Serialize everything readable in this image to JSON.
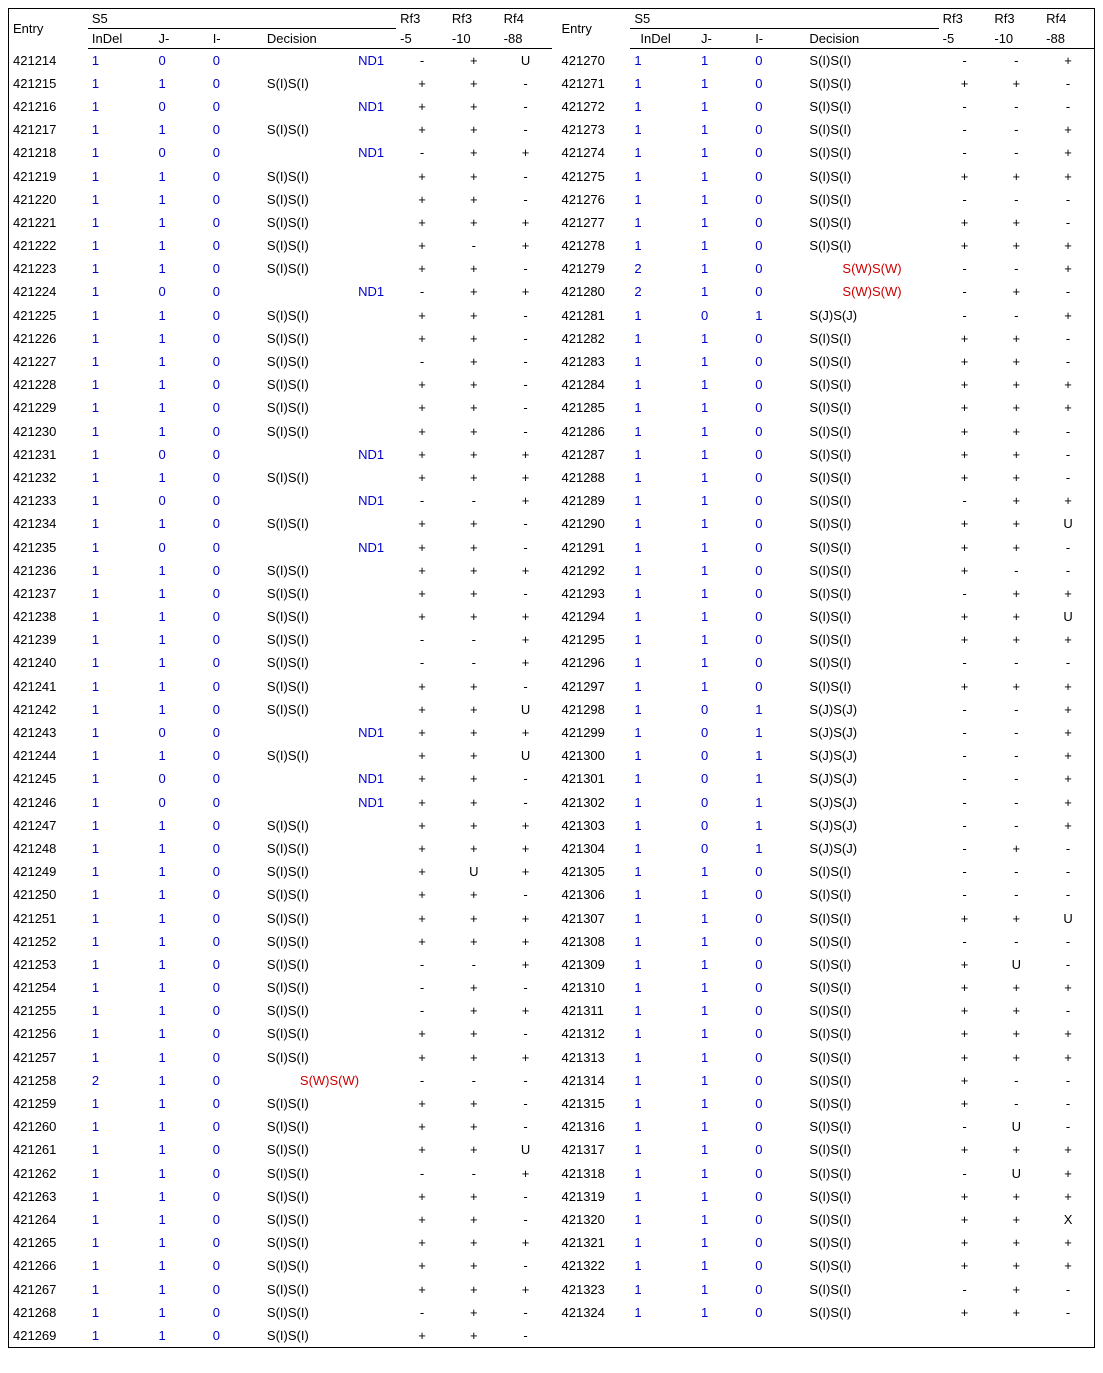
{
  "headers": {
    "entry": "Entry",
    "s5": "S5",
    "indel": "InDel",
    "j": "J-",
    "i": "I-",
    "decision": "Decision",
    "rf3_5_a": "Rf3",
    "rf3_5_b": "-5",
    "rf3_10_a": "Rf3",
    "rf3_10_b": "-10",
    "rf4_88_a": "Rf4",
    "rf4_88_b": "-88"
  },
  "decisionStyles": {
    "ND1": "dec-blue",
    "S(I)S(I)": "dec-black",
    "S(W)S(W)": "dec-red",
    "S(J)S(J)": "dec-black"
  },
  "left": [
    [
      "421214",
      "1",
      "0",
      "0",
      "ND1",
      "-",
      "+",
      "U"
    ],
    [
      "421215",
      "1",
      "1",
      "0",
      "S(I)S(I)",
      "+",
      "+",
      "-"
    ],
    [
      "421216",
      "1",
      "0",
      "0",
      "ND1",
      "+",
      "+",
      "-"
    ],
    [
      "421217",
      "1",
      "1",
      "0",
      "S(I)S(I)",
      "+",
      "+",
      "-"
    ],
    [
      "421218",
      "1",
      "0",
      "0",
      "ND1",
      "-",
      "+",
      "+"
    ],
    [
      "421219",
      "1",
      "1",
      "0",
      "S(I)S(I)",
      "+",
      "+",
      "-"
    ],
    [
      "421220",
      "1",
      "1",
      "0",
      "S(I)S(I)",
      "+",
      "+",
      "-"
    ],
    [
      "421221",
      "1",
      "1",
      "0",
      "S(I)S(I)",
      "+",
      "+",
      "+"
    ],
    [
      "421222",
      "1",
      "1",
      "0",
      "S(I)S(I)",
      "+",
      "-",
      "+"
    ],
    [
      "421223",
      "1",
      "1",
      "0",
      "S(I)S(I)",
      "+",
      "+",
      "-"
    ],
    [
      "421224",
      "1",
      "0",
      "0",
      "ND1",
      "-",
      "+",
      "+"
    ],
    [
      "421225",
      "1",
      "1",
      "0",
      "S(I)S(I)",
      "+",
      "+",
      "-"
    ],
    [
      "421226",
      "1",
      "1",
      "0",
      "S(I)S(I)",
      "+",
      "+",
      "-"
    ],
    [
      "421227",
      "1",
      "1",
      "0",
      "S(I)S(I)",
      "-",
      "+",
      "-"
    ],
    [
      "421228",
      "1",
      "1",
      "0",
      "S(I)S(I)",
      "+",
      "+",
      "-"
    ],
    [
      "421229",
      "1",
      "1",
      "0",
      "S(I)S(I)",
      "+",
      "+",
      "-"
    ],
    [
      "421230",
      "1",
      "1",
      "0",
      "S(I)S(I)",
      "+",
      "+",
      "-"
    ],
    [
      "421231",
      "1",
      "0",
      "0",
      "ND1",
      "+",
      "+",
      "+"
    ],
    [
      "421232",
      "1",
      "1",
      "0",
      "S(I)S(I)",
      "+",
      "+",
      "+"
    ],
    [
      "421233",
      "1",
      "0",
      "0",
      "ND1",
      "-",
      "-",
      "+"
    ],
    [
      "421234",
      "1",
      "1",
      "0",
      "S(I)S(I)",
      "+",
      "+",
      "-"
    ],
    [
      "421235",
      "1",
      "0",
      "0",
      "ND1",
      "+",
      "+",
      "-"
    ],
    [
      "421236",
      "1",
      "1",
      "0",
      "S(I)S(I)",
      "+",
      "+",
      "+"
    ],
    [
      "421237",
      "1",
      "1",
      "0",
      "S(I)S(I)",
      "+",
      "+",
      "-"
    ],
    [
      "421238",
      "1",
      "1",
      "0",
      "S(I)S(I)",
      "+",
      "+",
      "+"
    ],
    [
      "421239",
      "1",
      "1",
      "0",
      "S(I)S(I)",
      "-",
      "-",
      "+"
    ],
    [
      "421240",
      "1",
      "1",
      "0",
      "S(I)S(I)",
      "-",
      "-",
      "+"
    ],
    [
      "421241",
      "1",
      "1",
      "0",
      "S(I)S(I)",
      "+",
      "+",
      "-"
    ],
    [
      "421242",
      "1",
      "1",
      "0",
      "S(I)S(I)",
      "+",
      "+",
      "U"
    ],
    [
      "421243",
      "1",
      "0",
      "0",
      "ND1",
      "+",
      "+",
      "+"
    ],
    [
      "421244",
      "1",
      "1",
      "0",
      "S(I)S(I)",
      "+",
      "+",
      "U"
    ],
    [
      "421245",
      "1",
      "0",
      "0",
      "ND1",
      "+",
      "+",
      "-"
    ],
    [
      "421246",
      "1",
      "0",
      "0",
      "ND1",
      "+",
      "+",
      "-"
    ],
    [
      "421247",
      "1",
      "1",
      "0",
      "S(I)S(I)",
      "+",
      "+",
      "+"
    ],
    [
      "421248",
      "1",
      "1",
      "0",
      "S(I)S(I)",
      "+",
      "+",
      "+"
    ],
    [
      "421249",
      "1",
      "1",
      "0",
      "S(I)S(I)",
      "+",
      "U",
      "+"
    ],
    [
      "421250",
      "1",
      "1",
      "0",
      "S(I)S(I)",
      "+",
      "+",
      "-"
    ],
    [
      "421251",
      "1",
      "1",
      "0",
      "S(I)S(I)",
      "+",
      "+",
      "+"
    ],
    [
      "421252",
      "1",
      "1",
      "0",
      "S(I)S(I)",
      "+",
      "+",
      "+"
    ],
    [
      "421253",
      "1",
      "1",
      "0",
      "S(I)S(I)",
      "-",
      "-",
      "+"
    ],
    [
      "421254",
      "1",
      "1",
      "0",
      "S(I)S(I)",
      "-",
      "+",
      "-"
    ],
    [
      "421255",
      "1",
      "1",
      "0",
      "S(I)S(I)",
      "-",
      "+",
      "+"
    ],
    [
      "421256",
      "1",
      "1",
      "0",
      "S(I)S(I)",
      "+",
      "+",
      "-"
    ],
    [
      "421257",
      "1",
      "1",
      "0",
      "S(I)S(I)",
      "+",
      "+",
      "+"
    ],
    [
      "421258",
      "2",
      "1",
      "0",
      "S(W)S(W)",
      "-",
      "-",
      "-"
    ],
    [
      "421259",
      "1",
      "1",
      "0",
      "S(I)S(I)",
      "+",
      "+",
      "-"
    ],
    [
      "421260",
      "1",
      "1",
      "0",
      "S(I)S(I)",
      "+",
      "+",
      "-"
    ],
    [
      "421261",
      "1",
      "1",
      "0",
      "S(I)S(I)",
      "+",
      "+",
      "U"
    ],
    [
      "421262",
      "1",
      "1",
      "0",
      "S(I)S(I)",
      "-",
      "-",
      "+"
    ],
    [
      "421263",
      "1",
      "1",
      "0",
      "S(I)S(I)",
      "+",
      "+",
      "-"
    ],
    [
      "421264",
      "1",
      "1",
      "0",
      "S(I)S(I)",
      "+",
      "+",
      "-"
    ],
    [
      "421265",
      "1",
      "1",
      "0",
      "S(I)S(I)",
      "+",
      "+",
      "+"
    ],
    [
      "421266",
      "1",
      "1",
      "0",
      "S(I)S(I)",
      "+",
      "+",
      "-"
    ],
    [
      "421267",
      "1",
      "1",
      "0",
      "S(I)S(I)",
      "+",
      "+",
      "+"
    ],
    [
      "421268",
      "1",
      "1",
      "0",
      "S(I)S(I)",
      "-",
      "+",
      "-"
    ],
    [
      "421269",
      "1",
      "1",
      "0",
      "S(I)S(I)",
      "+",
      "+",
      "-"
    ]
  ],
  "right": [
    [
      "421270",
      "1",
      "1",
      "0",
      "S(I)S(I)",
      "-",
      "-",
      "+"
    ],
    [
      "421271",
      "1",
      "1",
      "0",
      "S(I)S(I)",
      "+",
      "+",
      "-"
    ],
    [
      "421272",
      "1",
      "1",
      "0",
      "S(I)S(I)",
      "-",
      "-",
      "-"
    ],
    [
      "421273",
      "1",
      "1",
      "0",
      "S(I)S(I)",
      "-",
      "-",
      "+"
    ],
    [
      "421274",
      "1",
      "1",
      "0",
      "S(I)S(I)",
      "-",
      "-",
      "+"
    ],
    [
      "421275",
      "1",
      "1",
      "0",
      "S(I)S(I)",
      "+",
      "+",
      "+"
    ],
    [
      "421276",
      "1",
      "1",
      "0",
      "S(I)S(I)",
      "-",
      "-",
      "-"
    ],
    [
      "421277",
      "1",
      "1",
      "0",
      "S(I)S(I)",
      "+",
      "+",
      "-"
    ],
    [
      "421278",
      "1",
      "1",
      "0",
      "S(I)S(I)",
      "+",
      "+",
      "+"
    ],
    [
      "421279",
      "2",
      "1",
      "0",
      "S(W)S(W)",
      "-",
      "-",
      "+"
    ],
    [
      "421280",
      "2",
      "1",
      "0",
      "S(W)S(W)",
      "-",
      "+",
      "-"
    ],
    [
      "421281",
      "1",
      "0",
      "1",
      "S(J)S(J)",
      "-",
      "-",
      "+"
    ],
    [
      "421282",
      "1",
      "1",
      "0",
      "S(I)S(I)",
      "+",
      "+",
      "-"
    ],
    [
      "421283",
      "1",
      "1",
      "0",
      "S(I)S(I)",
      "+",
      "+",
      "-"
    ],
    [
      "421284",
      "1",
      "1",
      "0",
      "S(I)S(I)",
      "+",
      "+",
      "+"
    ],
    [
      "421285",
      "1",
      "1",
      "0",
      "S(I)S(I)",
      "+",
      "+",
      "+"
    ],
    [
      "421286",
      "1",
      "1",
      "0",
      "S(I)S(I)",
      "+",
      "+",
      "-"
    ],
    [
      "421287",
      "1",
      "1",
      "0",
      "S(I)S(I)",
      "+",
      "+",
      "-"
    ],
    [
      "421288",
      "1",
      "1",
      "0",
      "S(I)S(I)",
      "+",
      "+",
      "-"
    ],
    [
      "421289",
      "1",
      "1",
      "0",
      "S(I)S(I)",
      "-",
      "+",
      "+"
    ],
    [
      "421290",
      "1",
      "1",
      "0",
      "S(I)S(I)",
      "+",
      "+",
      "U"
    ],
    [
      "421291",
      "1",
      "1",
      "0",
      "S(I)S(I)",
      "+",
      "+",
      "-"
    ],
    [
      "421292",
      "1",
      "1",
      "0",
      "S(I)S(I)",
      "+",
      "-",
      "-"
    ],
    [
      "421293",
      "1",
      "1",
      "0",
      "S(I)S(I)",
      "-",
      "+",
      "+"
    ],
    [
      "421294",
      "1",
      "1",
      "0",
      "S(I)S(I)",
      "+",
      "+",
      "U"
    ],
    [
      "421295",
      "1",
      "1",
      "0",
      "S(I)S(I)",
      "+",
      "+",
      "+"
    ],
    [
      "421296",
      "1",
      "1",
      "0",
      "S(I)S(I)",
      "-",
      "-",
      "-"
    ],
    [
      "421297",
      "1",
      "1",
      "0",
      "S(I)S(I)",
      "+",
      "+",
      "+"
    ],
    [
      "421298",
      "1",
      "0",
      "1",
      "S(J)S(J)",
      "-",
      "-",
      "+"
    ],
    [
      "421299",
      "1",
      "0",
      "1",
      "S(J)S(J)",
      "-",
      "-",
      "+"
    ],
    [
      "421300",
      "1",
      "0",
      "1",
      "S(J)S(J)",
      "-",
      "-",
      "+"
    ],
    [
      "421301",
      "1",
      "0",
      "1",
      "S(J)S(J)",
      "-",
      "-",
      "+"
    ],
    [
      "421302",
      "1",
      "0",
      "1",
      "S(J)S(J)",
      "-",
      "-",
      "+"
    ],
    [
      "421303",
      "1",
      "0",
      "1",
      "S(J)S(J)",
      "-",
      "-",
      "+"
    ],
    [
      "421304",
      "1",
      "0",
      "1",
      "S(J)S(J)",
      "-",
      "+",
      "-"
    ],
    [
      "421305",
      "1",
      "1",
      "0",
      "S(I)S(I)",
      "-",
      "-",
      "-"
    ],
    [
      "421306",
      "1",
      "1",
      "0",
      "S(I)S(I)",
      "-",
      "-",
      "-"
    ],
    [
      "421307",
      "1",
      "1",
      "0",
      "S(I)S(I)",
      "+",
      "+",
      "U"
    ],
    [
      "421308",
      "1",
      "1",
      "0",
      "S(I)S(I)",
      "-",
      "-",
      "-"
    ],
    [
      "421309",
      "1",
      "1",
      "0",
      "S(I)S(I)",
      "+",
      "U",
      "-"
    ],
    [
      "421310",
      "1",
      "1",
      "0",
      "S(I)S(I)",
      "+",
      "+",
      "+"
    ],
    [
      "421311",
      "1",
      "1",
      "0",
      "S(I)S(I)",
      "+",
      "+",
      "-"
    ],
    [
      "421312",
      "1",
      "1",
      "0",
      "S(I)S(I)",
      "+",
      "+",
      "+"
    ],
    [
      "421313",
      "1",
      "1",
      "0",
      "S(I)S(I)",
      "+",
      "+",
      "+"
    ],
    [
      "421314",
      "1",
      "1",
      "0",
      "S(I)S(I)",
      "+",
      "-",
      "-"
    ],
    [
      "421315",
      "1",
      "1",
      "0",
      "S(I)S(I)",
      "+",
      "-",
      "-"
    ],
    [
      "421316",
      "1",
      "1",
      "0",
      "S(I)S(I)",
      "-",
      "U",
      "-"
    ],
    [
      "421317",
      "1",
      "1",
      "0",
      "S(I)S(I)",
      "+",
      "+",
      "+"
    ],
    [
      "421318",
      "1",
      "1",
      "0",
      "S(I)S(I)",
      "-",
      "U",
      "+"
    ],
    [
      "421319",
      "1",
      "1",
      "0",
      "S(I)S(I)",
      "+",
      "+",
      "+"
    ],
    [
      "421320",
      "1",
      "1",
      "0",
      "S(I)S(I)",
      "+",
      "+",
      "X"
    ],
    [
      "421321",
      "1",
      "1",
      "0",
      "S(I)S(I)",
      "+",
      "+",
      "+"
    ],
    [
      "421322",
      "1",
      "1",
      "0",
      "S(I)S(I)",
      "+",
      "+",
      "+"
    ],
    [
      "421323",
      "1",
      "1",
      "0",
      "S(I)S(I)",
      "-",
      "+",
      "-"
    ],
    [
      "421324",
      "1",
      "1",
      "0",
      "S(I)S(I)",
      "+",
      "+",
      "-"
    ]
  ]
}
